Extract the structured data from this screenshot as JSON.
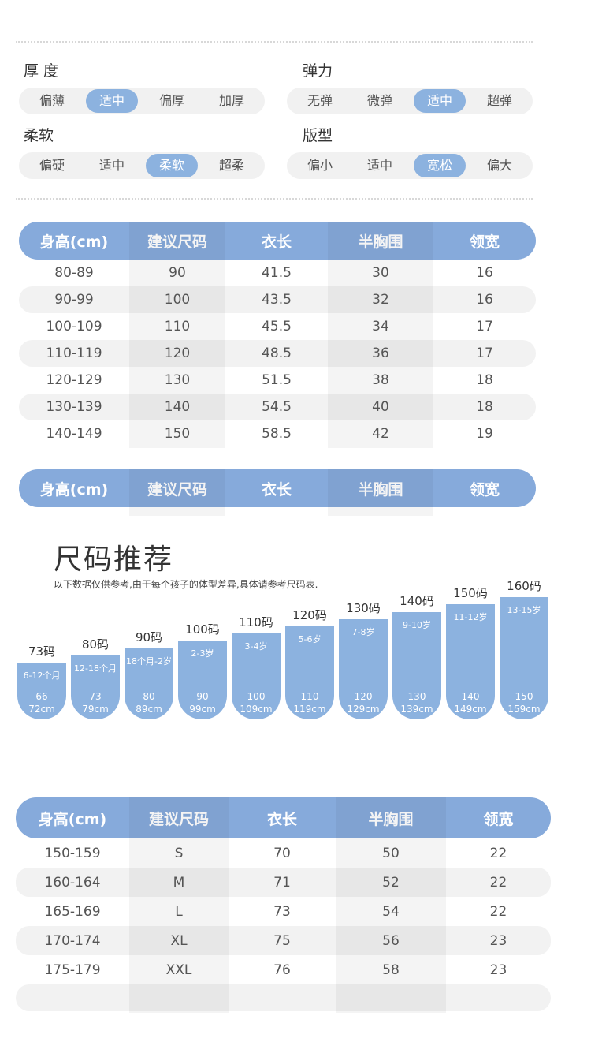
{
  "attributes": {
    "thickness": {
      "title": "厚 度",
      "options": [
        "偏薄",
        "适中",
        "偏厚",
        "加厚"
      ],
      "selected": "适中"
    },
    "elasticity": {
      "title": "弹力",
      "options": [
        "无弹",
        "微弹",
        "适中",
        "超弹"
      ],
      "selected": "适中"
    },
    "softness": {
      "title": "柔软",
      "options": [
        "偏硬",
        "适中",
        "柔软",
        "超柔"
      ],
      "selected": "柔软"
    },
    "fit": {
      "title": "版型",
      "options": [
        "偏小",
        "适中",
        "宽松",
        "偏大"
      ],
      "selected": "宽松"
    }
  },
  "table_headers": [
    "身高(cm)",
    "建议尺码",
    "衣长",
    "半胸围",
    "领宽"
  ],
  "kids_table": {
    "rows": [
      [
        "80-89",
        "90",
        "41.5",
        "30",
        "16"
      ],
      [
        "90-99",
        "100",
        "43.5",
        "32",
        "16"
      ],
      [
        "100-109",
        "110",
        "45.5",
        "34",
        "17"
      ],
      [
        "110-119",
        "120",
        "48.5",
        "36",
        "17"
      ],
      [
        "120-129",
        "130",
        "51.5",
        "38",
        "18"
      ],
      [
        "130-139",
        "140",
        "54.5",
        "40",
        "18"
      ],
      [
        "140-149",
        "150",
        "58.5",
        "42",
        "19"
      ]
    ]
  },
  "size_recommend": {
    "title": "尺码推荐",
    "subtitle": "以下数据仅供参考,由于每个孩子的体型差异,具体请参考尺码表.",
    "sizes": [
      {
        "label": "73码",
        "age": "6-12个月",
        "h1": "66",
        "h2": "72cm"
      },
      {
        "label": "80码",
        "age": "12-18个月",
        "h1": "73",
        "h2": "79cm"
      },
      {
        "label": "90码",
        "age": "18个月-2岁",
        "h1": "80",
        "h2": "89cm"
      },
      {
        "label": "100码",
        "age": "2-3岁",
        "h1": "90",
        "h2": "99cm"
      },
      {
        "label": "110码",
        "age": "3-4岁",
        "h1": "100",
        "h2": "109cm"
      },
      {
        "label": "120码",
        "age": "5-6岁",
        "h1": "110",
        "h2": "119cm"
      },
      {
        "label": "130码",
        "age": "7-8岁",
        "h1": "120",
        "h2": "129cm"
      },
      {
        "label": "140码",
        "age": "9-10岁",
        "h1": "130",
        "h2": "139cm"
      },
      {
        "label": "150码",
        "age": "11-12岁",
        "h1": "140",
        "h2": "149cm"
      },
      {
        "label": "160码",
        "age": "13-15岁",
        "h1": "150",
        "h2": "159cm"
      }
    ]
  },
  "adult_table": {
    "rows": [
      [
        "150-159",
        "S",
        "70",
        "50",
        "22"
      ],
      [
        "160-164",
        "M",
        "71",
        "52",
        "22"
      ],
      [
        "165-169",
        "L",
        "73",
        "54",
        "22"
      ],
      [
        "170-174",
        "XL",
        "75",
        "56",
        "23"
      ],
      [
        "175-179",
        "XXL",
        "76",
        "58",
        "23"
      ]
    ]
  },
  "colors": {
    "accent": "#86aadb",
    "pill": "#8cb2df",
    "row_alt": "#f2f2f2"
  }
}
